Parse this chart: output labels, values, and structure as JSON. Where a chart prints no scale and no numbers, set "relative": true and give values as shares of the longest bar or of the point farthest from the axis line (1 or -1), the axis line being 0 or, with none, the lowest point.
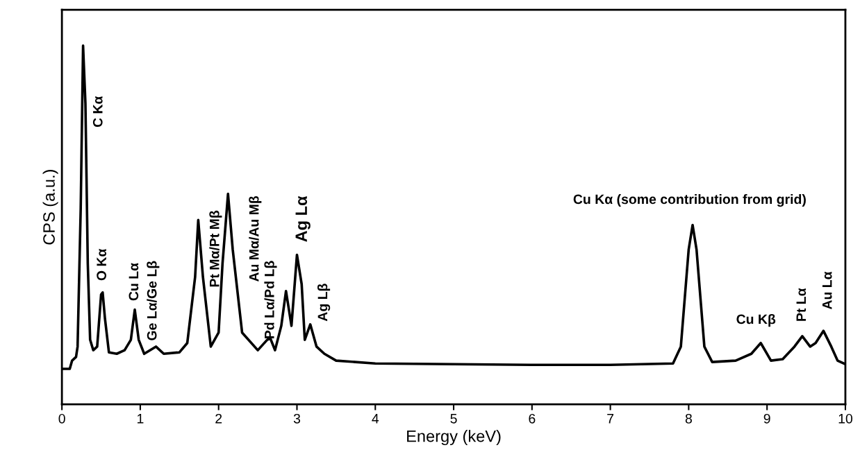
{
  "chart_data": {
    "type": "line",
    "relative": true,
    "xlabel": "Energy (keV)",
    "ylabel": "CPS (a.u.)",
    "xlim": [
      0,
      10
    ],
    "xticks": [
      0,
      1,
      2,
      3,
      4,
      5,
      6,
      7,
      8,
      9,
      10
    ],
    "tick_labels": "x",
    "grid": false,
    "legend": false,
    "marker": "none",
    "line_style": "solid",
    "series": [
      {
        "color": "#000000",
        "x": [
          0,
          0.1,
          0.13,
          0.18,
          0.2,
          0.24,
          0.27,
          0.3,
          0.33,
          0.36,
          0.4,
          0.45,
          0.5,
          0.52,
          0.55,
          0.6,
          0.7,
          0.8,
          0.88,
          0.93,
          0.98,
          1.05,
          1.2,
          1.3,
          1.5,
          1.6,
          1.7,
          1.74,
          1.8,
          1.9,
          2.0,
          2.05,
          2.12,
          2.18,
          2.3,
          2.5,
          2.62,
          2.66,
          2.72,
          2.8,
          2.86,
          2.93,
          3.0,
          3.06,
          3.1,
          3.17,
          3.25,
          3.35,
          3.5,
          4,
          5,
          6,
          7,
          7.8,
          7.9,
          8.0,
          8.05,
          8.1,
          8.2,
          8.3,
          8.6,
          8.8,
          8.92,
          9.05,
          9.2,
          9.35,
          9.45,
          9.55,
          9.62,
          9.72,
          9.82,
          9.9,
          10
        ],
        "values": [
          0.099,
          0.099,
          0.122,
          0.132,
          0.161,
          0.548,
          1,
          0.839,
          0.393,
          0.18,
          0.151,
          0.161,
          0.306,
          0.312,
          0.238,
          0.145,
          0.141,
          0.151,
          0.18,
          0.264,
          0.18,
          0.141,
          0.161,
          0.141,
          0.145,
          0.171,
          0.355,
          0.514,
          0.355,
          0.161,
          0.2,
          0.393,
          0.587,
          0.432,
          0.2,
          0.151,
          0.18,
          0.184,
          0.151,
          0.219,
          0.316,
          0.219,
          0.417,
          0.335,
          0.18,
          0.223,
          0.161,
          0.141,
          0.122,
          0.114,
          0.112,
          0.11,
          0.11,
          0.114,
          0.161,
          0.432,
          0.5,
          0.432,
          0.161,
          0.118,
          0.122,
          0.141,
          0.171,
          0.122,
          0.126,
          0.161,
          0.19,
          0.161,
          0.171,
          0.205,
          0.161,
          0.122,
          0.112
        ]
      }
    ],
    "annotations": [
      {
        "text": "C Kα",
        "x": 0.3,
        "y": 0.839
      },
      {
        "text": "O Kα",
        "x": 0.52,
        "y": 0.312
      },
      {
        "text": "Cu Lα",
        "x": 0.93,
        "y": 0.264
      },
      {
        "text": "Ge Lα/Ge Lβ",
        "x": 1.2,
        "y": 0.161
      },
      {
        "text": "Pt Mα/Pt Mβ",
        "x": 1.74,
        "y": 0.514
      },
      {
        "text": "Au Mα/Au Mβ",
        "x": 2.22,
        "y": 0.355
      },
      {
        "text": "Pd Lα/Pd Lβ",
        "x": 2.86,
        "y": 0.316
      },
      {
        "text": "Ag Lα",
        "x": 3.0,
        "y": 0.417
      },
      {
        "text": "Ag Lβ",
        "x": 3.17,
        "y": 0.223
      },
      {
        "text": "Cu Kα (some contribution from grid)",
        "x": 8.05,
        "y": 0.5
      },
      {
        "text": "Cu Kβ",
        "x": 8.92,
        "y": 0.171
      },
      {
        "text": "Pt Lα",
        "x": 9.45,
        "y": 0.19
      },
      {
        "text": "Au Lα",
        "x": 9.72,
        "y": 0.205
      }
    ]
  }
}
